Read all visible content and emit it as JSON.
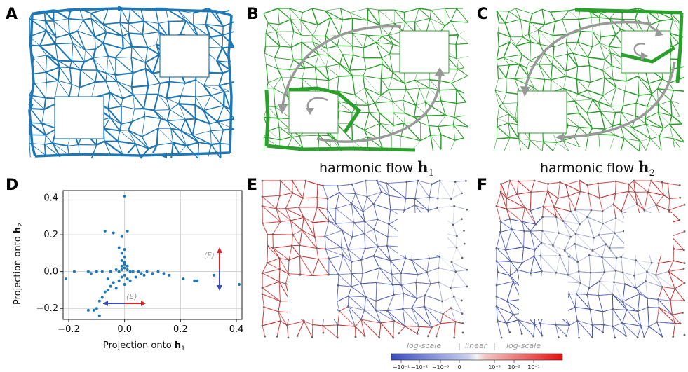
{
  "panels": {
    "A": "A",
    "B": "B",
    "C": "C",
    "D": "D",
    "E": "E",
    "F": "F"
  },
  "captions": {
    "b_text": "harmonic flow",
    "b_symbol": "h",
    "b_sub": "1",
    "c_text": "harmonic flow",
    "c_symbol": "h",
    "c_sub": "2"
  },
  "colors": {
    "blue_flow": "#1f77b4",
    "green_flow": "#2ca02c",
    "arrow_gray": "#999999",
    "div_neg": "#3b4cc0",
    "div_pos": "#d62728"
  },
  "chart_data": {
    "type": "scatter",
    "title": "",
    "xlabel_prefix": "Projection onto",
    "xlabel_symbol": "h",
    "xlabel_sub": "1",
    "ylabel_prefix": "Projection onto",
    "ylabel_symbol": "h",
    "ylabel_sub": "2",
    "xlim": [
      -0.22,
      0.42
    ],
    "ylim": [
      -0.26,
      0.44
    ],
    "xticks": [
      -0.2,
      0.0,
      0.2,
      0.4
    ],
    "xtick_labels": [
      "−0.2",
      "0.0",
      "0.2",
      "0.4"
    ],
    "yticks": [
      -0.2,
      0.0,
      0.2,
      0.4
    ],
    "ytick_labels": [
      "−0.2",
      "0.0",
      "0.2",
      "0.4"
    ],
    "grid": true,
    "point_color": "#1f77b4",
    "annotation_E": "(E)",
    "annotation_F": "(F)",
    "points": [
      [
        0.0,
        0.41
      ],
      [
        -0.04,
        0.21
      ],
      [
        -0.07,
        0.22
      ],
      [
        0.01,
        0.22
      ],
      [
        -0.01,
        0.19
      ],
      [
        -0.02,
        0.13
      ],
      [
        0.0,
        0.12
      ],
      [
        -0.01,
        0.1
      ],
      [
        0.0,
        0.08
      ],
      [
        -0.01,
        0.06
      ],
      [
        0.0,
        0.05
      ],
      [
        0.0,
        0.04
      ],
      [
        -0.01,
        0.03
      ],
      [
        0.01,
        0.03
      ],
      [
        0.0,
        0.02
      ],
      [
        -0.01,
        0.01
      ],
      [
        0.01,
        0.01
      ],
      [
        0.02,
        0.0
      ],
      [
        -0.02,
        0.0
      ],
      [
        0.03,
        0.0
      ],
      [
        -0.03,
        0.01
      ],
      [
        0.05,
        0.0
      ],
      [
        0.06,
        -0.01
      ],
      [
        0.08,
        0.0
      ],
      [
        0.1,
        -0.01
      ],
      [
        0.12,
        0.0
      ],
      [
        0.14,
        -0.01
      ],
      [
        0.16,
        -0.02
      ],
      [
        0.21,
        -0.04
      ],
      [
        0.25,
        -0.05
      ],
      [
        0.26,
        -0.05
      ],
      [
        0.32,
        -0.02
      ],
      [
        0.41,
        -0.07
      ],
      [
        -0.05,
        0.0
      ],
      [
        -0.08,
        0.0
      ],
      [
        -0.1,
        0.0
      ],
      [
        -0.13,
        0.0
      ],
      [
        -0.18,
        0.0
      ],
      [
        -0.21,
        -0.04
      ],
      [
        0.0,
        -0.02
      ],
      [
        -0.01,
        -0.03
      ],
      [
        0.01,
        -0.04
      ],
      [
        -0.02,
        -0.05
      ],
      [
        -0.04,
        -0.06
      ],
      [
        -0.05,
        -0.08
      ],
      [
        -0.06,
        -0.1
      ],
      [
        -0.07,
        -0.11
      ],
      [
        -0.08,
        -0.14
      ],
      [
        -0.09,
        -0.16
      ],
      [
        -0.1,
        -0.2
      ],
      [
        -0.11,
        -0.21
      ],
      [
        -0.13,
        -0.21
      ],
      [
        -0.09,
        -0.24
      ],
      [
        0.02,
        -0.05
      ],
      [
        0.0,
        -0.07
      ],
      [
        -0.03,
        -0.09
      ],
      [
        0.04,
        -0.03
      ],
      [
        -0.06,
        -0.04
      ],
      [
        0.07,
        -0.02
      ],
      [
        -0.12,
        -0.01
      ]
    ]
  },
  "colorbar": {
    "label_left": "log-scale",
    "label_mid": "linear",
    "label_right": "log-scale",
    "ticks": [
      "−10⁻¹",
      "−10⁻²",
      "−10⁻³",
      "0",
      "10⁻³",
      "10⁻²",
      "10⁻¹"
    ]
  }
}
